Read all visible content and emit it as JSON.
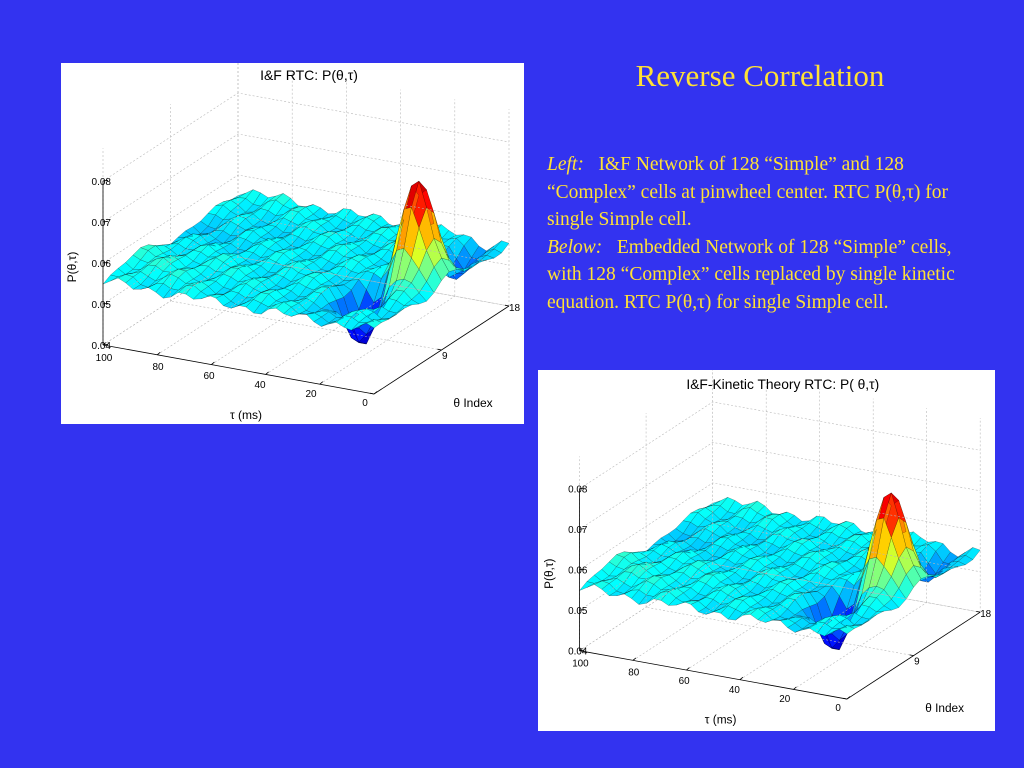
{
  "slide": {
    "title": "Reverse Correlation",
    "left_label": "Left:",
    "left_text": "I&F Network of 128 “Simple” and 128 “Complex” cells at pinwheel center.  RTC P(θ,τ) for single Simple cell.",
    "below_label": "Below:",
    "below_text": "Embedded Network of 128 “Simple” cells, with 128 “Complex” cells replaced by single kinetic equation. RTC P(θ,τ) for single Simple cell."
  },
  "plots": [
    {
      "title": "I&F RTC: P(θ,τ)",
      "zlabel": "P(θ,τ)",
      "xlabel": "τ (ms)",
      "ylabel": "θ Index",
      "ztick_labels": [
        "0.08",
        "0.07",
        "0.06",
        "0.05",
        "0.04"
      ],
      "tau_tick_labels": [
        "100",
        "80",
        "60",
        "40",
        "20",
        "0"
      ],
      "theta_tick_labels": [
        "18",
        "9"
      ]
    },
    {
      "title": "I&F-Kinetic Theory RTC: P( θ,τ)",
      "zlabel": "P(θ,τ)",
      "xlabel": "τ (ms)",
      "ylabel": "θ Index",
      "ztick_labels": [
        "0.08",
        "0.07",
        "0.06",
        "0.05",
        "0.04"
      ],
      "tau_tick_labels": [
        "100",
        "80",
        "60",
        "40",
        "20",
        "0"
      ],
      "theta_tick_labels": [
        "18",
        "9"
      ]
    }
  ],
  "chart_data": [
    {
      "type": "surface",
      "title": "I&F RTC: P(θ,τ)",
      "xlabel": "τ (ms)",
      "ylabel": "θ Index",
      "zlabel": "P(θ,τ)",
      "xlim": [
        0,
        100
      ],
      "ylim": [
        0,
        18
      ],
      "zlim": [
        0.04,
        0.08
      ],
      "xticks": [
        0,
        20,
        40,
        60,
        80,
        100
      ],
      "yticks": [
        9,
        18
      ],
      "zticks": [
        0.04,
        0.05,
        0.06,
        0.07,
        0.08
      ],
      "baseline": 0.0555,
      "features": [
        {
          "kind": "peak",
          "tau": 12,
          "theta": 10,
          "value": 0.079
        },
        {
          "kind": "trough",
          "tau": 20,
          "theta": 6,
          "value": 0.042
        },
        {
          "kind": "trough",
          "tau": 10,
          "theta": 15,
          "value": 0.049
        }
      ],
      "grid": true,
      "colormap": "jet"
    },
    {
      "type": "surface",
      "title": "I&F-Kinetic Theory RTC: P( θ,τ)",
      "xlabel": "τ (ms)",
      "ylabel": "θ Index",
      "zlabel": "P(θ,τ)",
      "xlim": [
        0,
        100
      ],
      "ylim": [
        0,
        18
      ],
      "zlim": [
        0.04,
        0.08
      ],
      "xticks": [
        0,
        20,
        40,
        60,
        80,
        100
      ],
      "yticks": [
        9,
        18
      ],
      "zticks": [
        0.04,
        0.05,
        0.06,
        0.07,
        0.08
      ],
      "baseline": 0.0555,
      "features": [
        {
          "kind": "peak",
          "tau": 12,
          "theta": 10,
          "value": 0.078
        },
        {
          "kind": "trough",
          "tau": 20,
          "theta": 6,
          "value": 0.042
        },
        {
          "kind": "trough",
          "tau": 10,
          "theta": 15,
          "value": 0.05
        }
      ],
      "grid": true,
      "colormap": "jet"
    }
  ]
}
